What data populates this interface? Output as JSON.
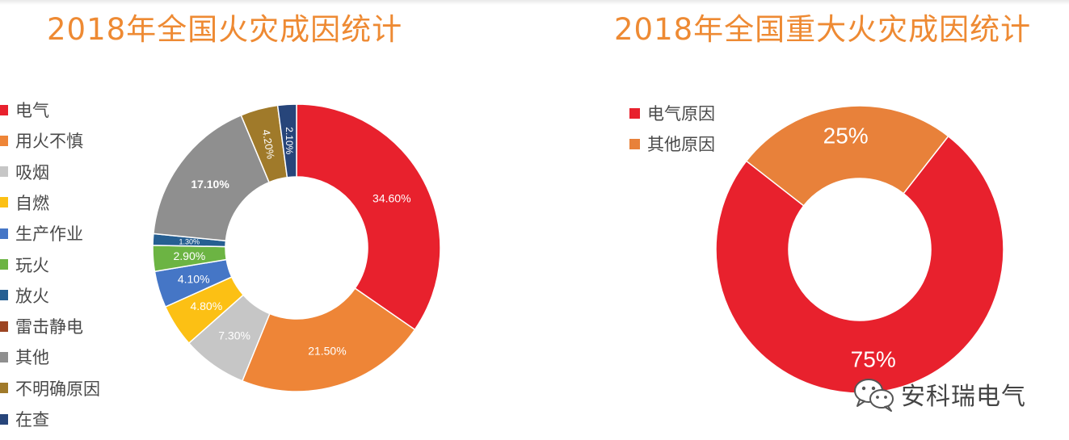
{
  "charts": {
    "left_title": "2018年全国火灾成因统计",
    "right_title": "2018年全国重大火灾成因统计"
  },
  "chart_data": [
    {
      "type": "pie",
      "title": "2018年全国火灾成因统计",
      "legend_position": "left",
      "donut": true,
      "slices": [
        {
          "label": "电气",
          "value": 34.6,
          "display": "34.60%",
          "color": "#e8212d"
        },
        {
          "label": "用火不慎",
          "value": 21.5,
          "display": "21.50%",
          "color": "#ee8537"
        },
        {
          "label": "吸烟",
          "value": 7.3,
          "display": "7.30%",
          "color": "#c6c6c6"
        },
        {
          "label": "自燃",
          "value": 4.8,
          "display": "4.80%",
          "color": "#fcc014"
        },
        {
          "label": "生产作业",
          "value": 4.1,
          "display": "4.10%",
          "color": "#4576c6"
        },
        {
          "label": "玩火",
          "value": 2.9,
          "display": "2.90%",
          "color": "#6cb443"
        },
        {
          "label": "放火",
          "value": 1.3,
          "display": "1.30%",
          "color": "#265f92"
        },
        {
          "label": "雷击静电",
          "value": 0,
          "display": "",
          "color": "#9c4523"
        },
        {
          "label": "其他",
          "value": 17.1,
          "display": "17.10%",
          "color": "#8f8f8f"
        },
        {
          "label": "不明确原因",
          "value": 4.2,
          "display": "4.20%",
          "color": "#a07a2a"
        },
        {
          "label": "在查",
          "value": 2.1,
          "display": "2.10%",
          "color": "#27457a"
        }
      ]
    },
    {
      "type": "pie",
      "title": "2018年全国重大火灾成因统计",
      "legend_position": "top-left",
      "donut": true,
      "slices": [
        {
          "label": "电气原因",
          "value": 75,
          "display": "75%",
          "color": "#e8212d"
        },
        {
          "label": "其他原因",
          "value": 25,
          "display": "25%",
          "color": "#e8813a"
        }
      ]
    }
  ],
  "watermark": {
    "text": "安科瑞电气",
    "icon": "wechat-icon"
  }
}
